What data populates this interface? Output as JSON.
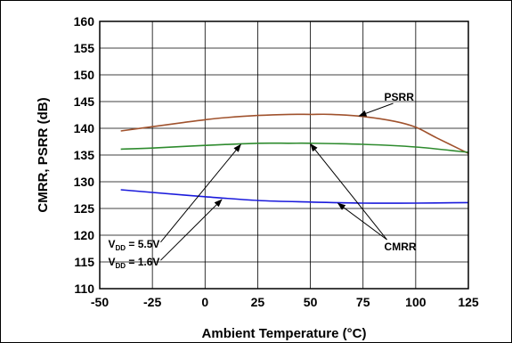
{
  "chart_data": {
    "type": "line",
    "title": "",
    "xlabel": "Ambient Temperature (°C)",
    "ylabel": "CMRR, PSRR (dB)",
    "xlim": [
      -50,
      125
    ],
    "ylim": [
      110,
      160
    ],
    "xticks": [
      -50,
      -25,
      0,
      25,
      50,
      75,
      100,
      125
    ],
    "yticks": [
      110,
      115,
      120,
      125,
      130,
      135,
      140,
      145,
      150,
      155,
      160
    ],
    "grid": true,
    "colors": {
      "psrr": "#a0522d",
      "cmrr_5v5": "#2e8b2e",
      "cmrr_1v6": "#1a1adc"
    },
    "series": [
      {
        "name": "PSRR",
        "color": "#a0522d",
        "x": [
          -40,
          -25,
          -10,
          0,
          10,
          25,
          40,
          50,
          60,
          75,
          90,
          100,
          110,
          125
        ],
        "y": [
          139.5,
          140.3,
          141.1,
          141.6,
          142.0,
          142.4,
          142.6,
          142.6,
          142.6,
          142.2,
          141.3,
          140.2,
          138.2,
          135.3
        ]
      },
      {
        "name": "CMRR",
        "color": "#2e8b2e",
        "x": [
          -40,
          -25,
          0,
          25,
          40,
          50,
          75,
          100,
          125
        ],
        "y": [
          136.1,
          136.3,
          136.8,
          137.2,
          137.2,
          137.2,
          137.0,
          136.5,
          135.5
        ]
      },
      {
        "name": "CMRR",
        "color": "#1a1adc",
        "x": [
          -40,
          -25,
          0,
          25,
          50,
          75,
          100,
          125
        ],
        "y": [
          128.5,
          128.0,
          127.2,
          126.5,
          126.2,
          126.0,
          126.0,
          126.1
        ]
      }
    ],
    "annotations": [
      {
        "id": "psrr",
        "text": "PSRR",
        "x": 80,
        "y": 146,
        "arrows": [
          [
            73,
            142.3
          ]
        ]
      },
      {
        "id": "cmrr",
        "text": "CMRR",
        "x": 80,
        "y": 118,
        "arrows": [
          [
            50,
            137.1
          ],
          [
            63,
            126.0
          ]
        ]
      },
      {
        "id": "vdd55",
        "text_main": "V",
        "text_sub": "DD",
        "text_tail": " = 5.5V",
        "x": -46,
        "y": 117.7,
        "arrows": [
          [
            17,
            137.0
          ]
        ]
      },
      {
        "id": "vdd16",
        "text_main": "V",
        "text_sub": "DD",
        "text_tail": " = 1.6V",
        "x": -46,
        "y": 114.3,
        "arrows": [
          [
            8,
            126.7
          ]
        ]
      }
    ]
  }
}
